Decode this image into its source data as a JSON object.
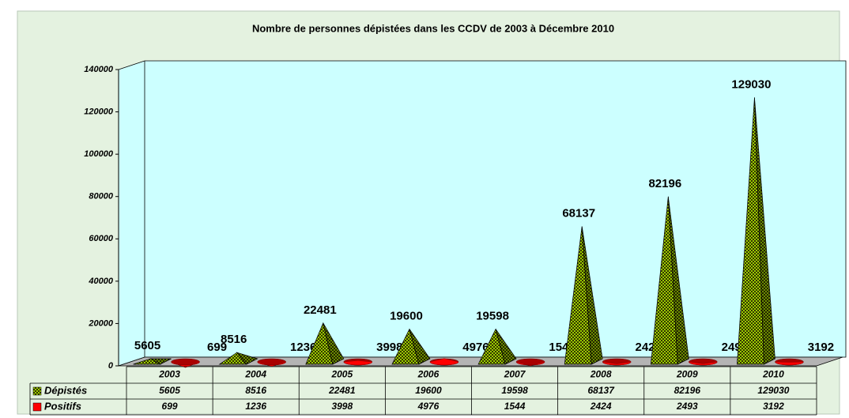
{
  "chart_data": {
    "type": "pyramid3d",
    "title": "Nombre de personnes dépistées dans les CCDV de 2003 à Décembre  2010",
    "categories": [
      "2003",
      "2004",
      "2005",
      "2006",
      "2007",
      "2008",
      "2009",
      "2010"
    ],
    "series": [
      {
        "name": "Dépistés",
        "color": "#99cc00",
        "values": [
          5605,
          8516,
          22481,
          19600,
          19598,
          68137,
          82196,
          129030
        ]
      },
      {
        "name": "Positifs",
        "color": "#ff0000",
        "values": [
          699,
          1236,
          3998,
          4976,
          1544,
          2424,
          2493,
          3192
        ]
      }
    ],
    "ylim": [
      0,
      140000
    ],
    "yticks": [
      0,
      20000,
      40000,
      60000,
      80000,
      100000,
      120000,
      140000
    ]
  }
}
